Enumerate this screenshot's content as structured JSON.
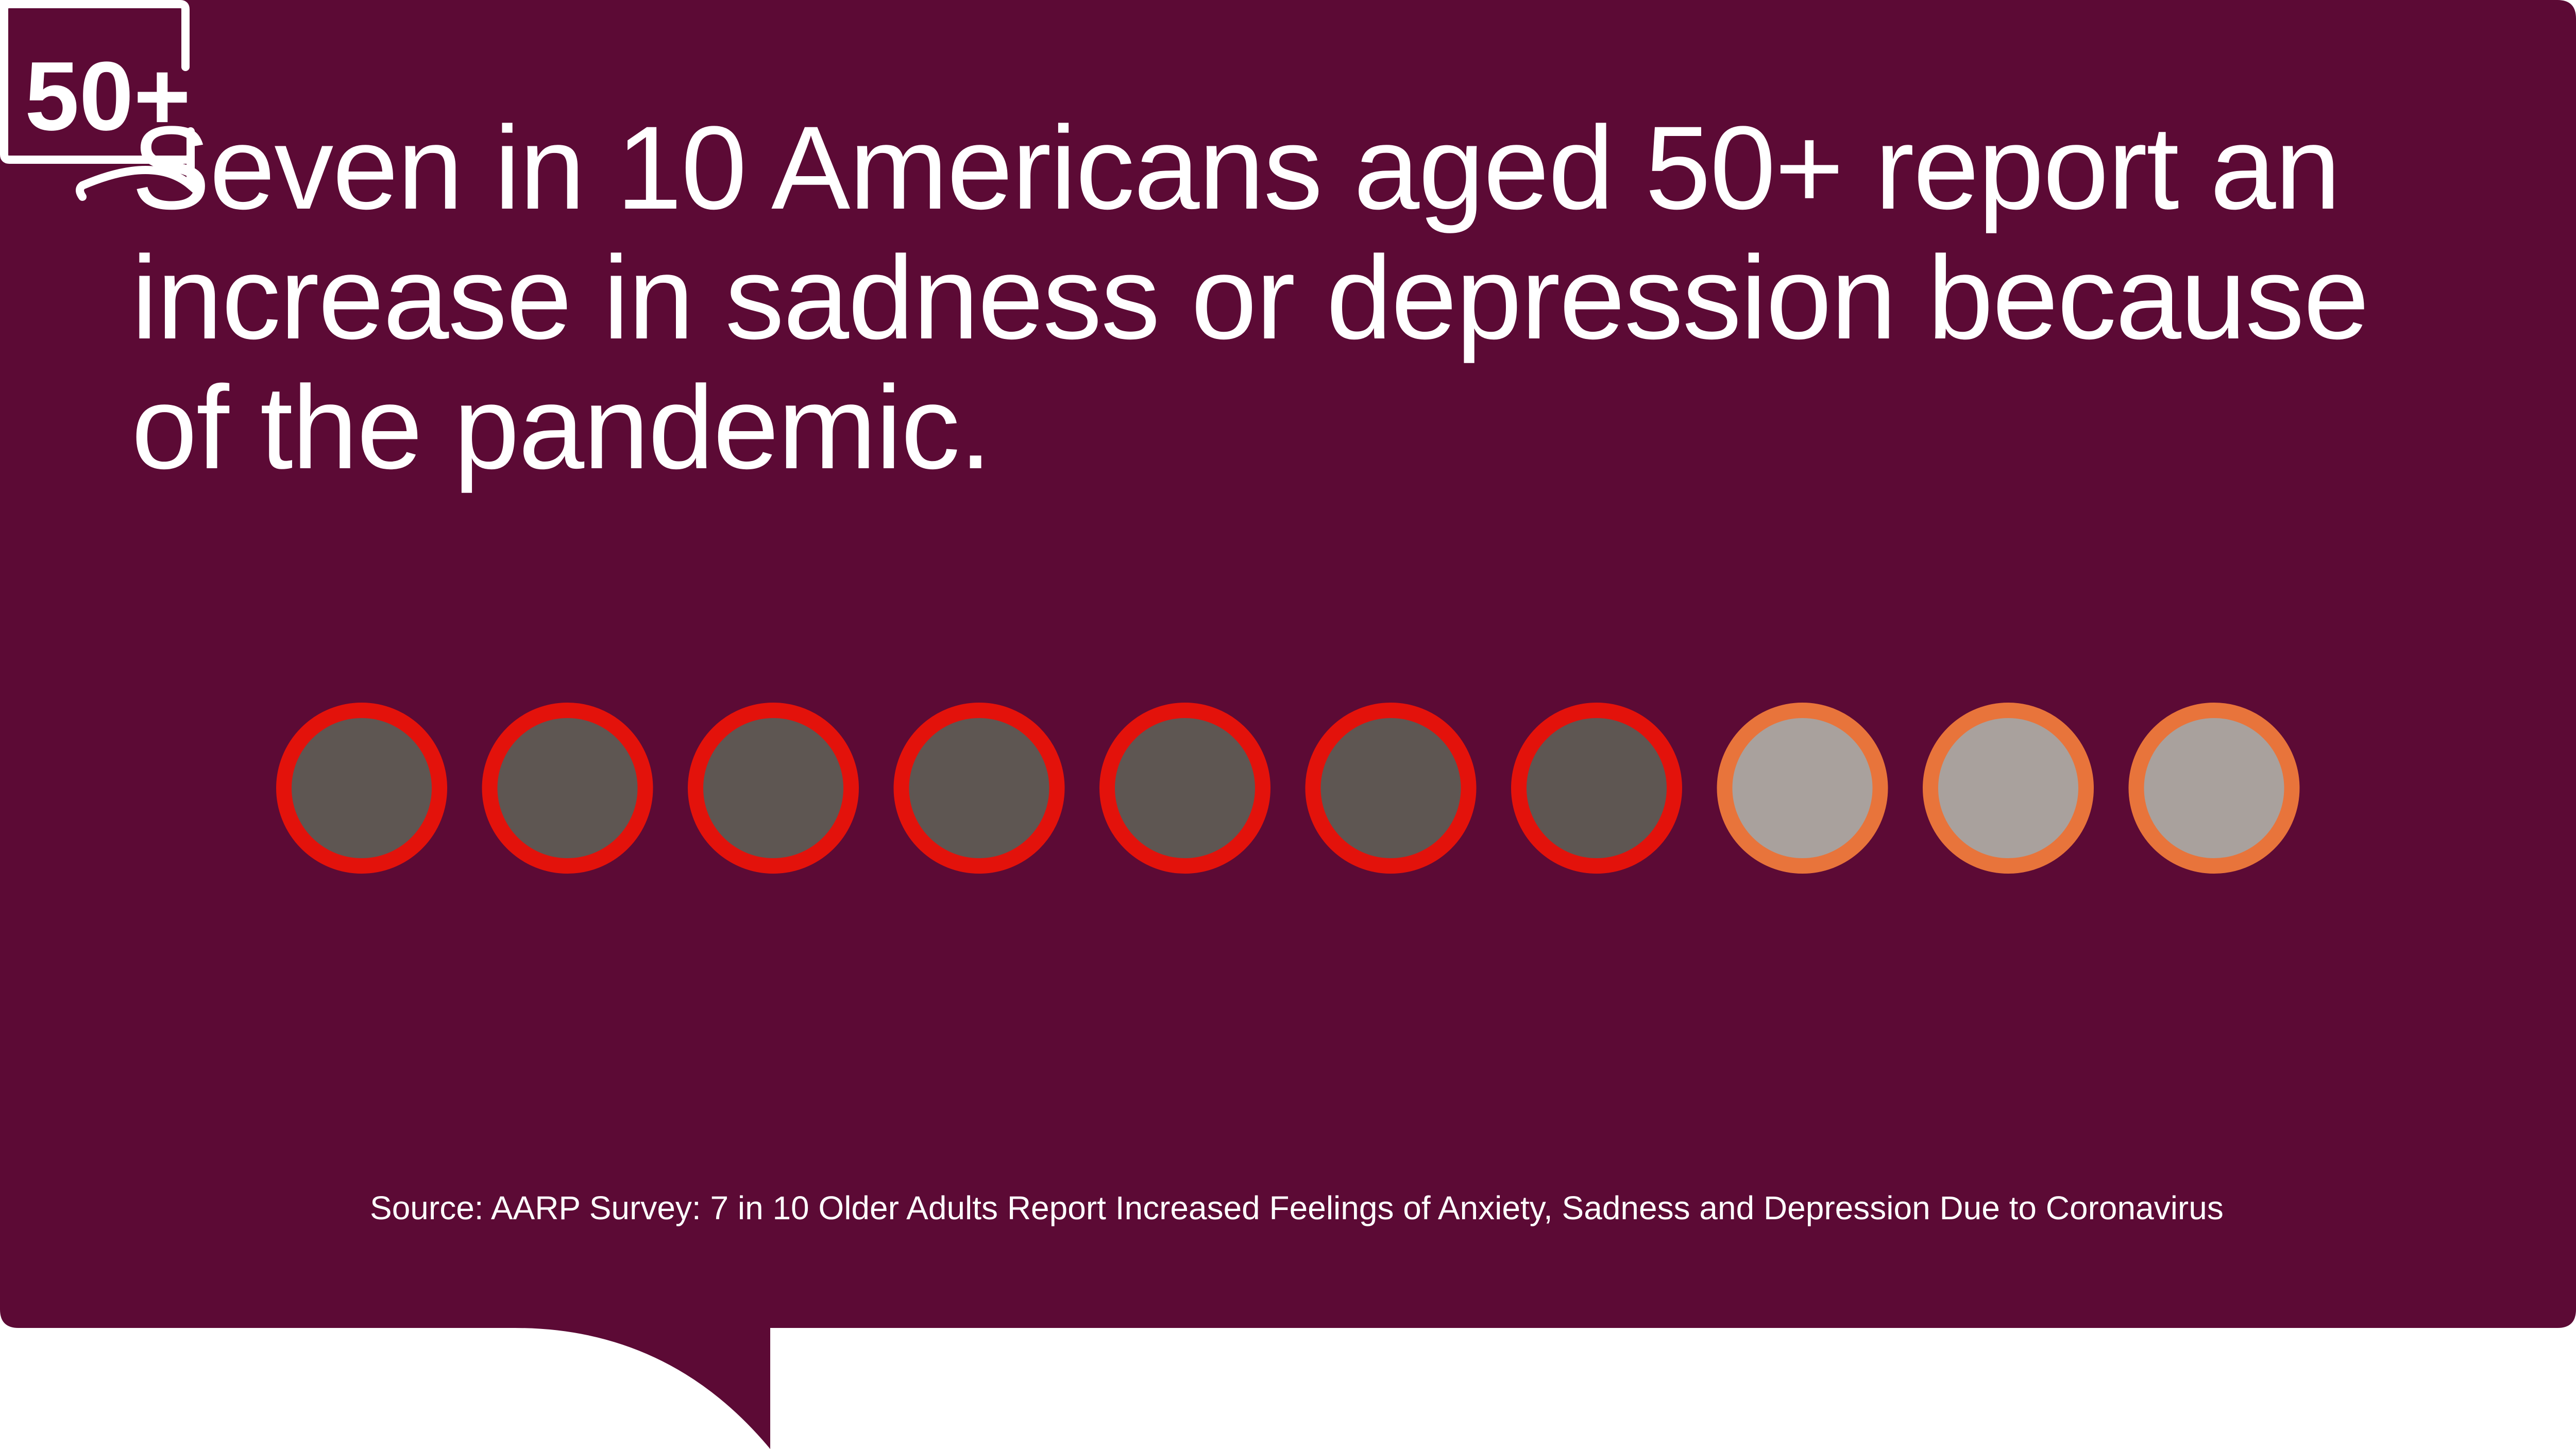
{
  "headline": "Seven in 10 Americans aged 50+ report an increase in sadness or depression because of the pandemic.",
  "source": "Source: AARP Survey: 7 in 10 Older Adults Report Increased Feelings of Anxiety, Sadness and Depression Due to Coronavirus",
  "logo": {
    "text": "50+",
    "icon": "speech-bubble-icon"
  },
  "colors": {
    "background": "#5c0a35",
    "highlight_ring": "#e3120b",
    "highlight_fill": "#5e5652",
    "rest_ring": "#e8743b",
    "rest_fill": "#a9a19d",
    "text": "#ffffff"
  },
  "chart_data": {
    "type": "pictograph",
    "total": 10,
    "highlighted": 7,
    "rest": 3
  }
}
